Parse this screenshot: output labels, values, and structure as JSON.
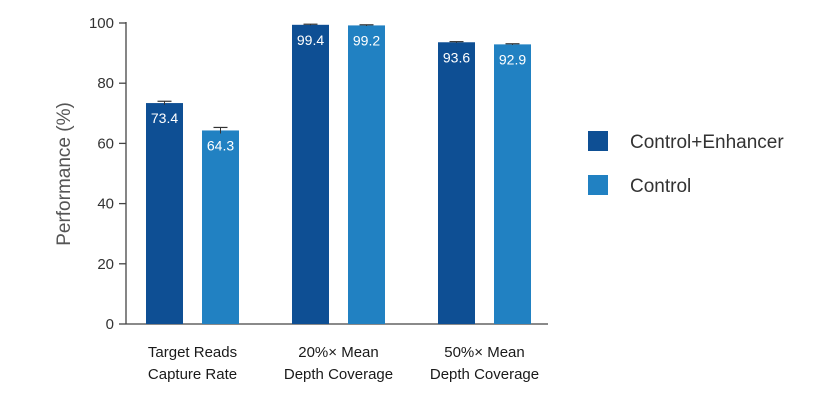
{
  "chart_data": {
    "type": "bar",
    "title": "",
    "xlabel": "",
    "ylabel": "Performance (%)",
    "ylim": [
      0,
      100
    ],
    "yticks": [
      0,
      20,
      40,
      60,
      80,
      100
    ],
    "grid": false,
    "legend_position": "right",
    "categories": [
      [
        "Target Reads",
        "Capture Rate"
      ],
      [
        "20%× Mean",
        "Depth Coverage"
      ],
      [
        "50%× Mean",
        "Depth Coverage"
      ]
    ],
    "series": [
      {
        "name": "Control+Enhancer",
        "color": "#0e4f94",
        "values": [
          73.4,
          99.4,
          93.6
        ],
        "labels": [
          "73.4",
          "99.4",
          "93.6"
        ],
        "error": [
          0.6,
          0.2,
          0.2
        ]
      },
      {
        "name": "Control",
        "color": "#2181c2",
        "values": [
          64.3,
          99.2,
          92.9
        ],
        "labels": [
          "64.3",
          "99.2",
          "92.9"
        ],
        "error": [
          1.0,
          0.2,
          0.2
        ]
      }
    ]
  }
}
